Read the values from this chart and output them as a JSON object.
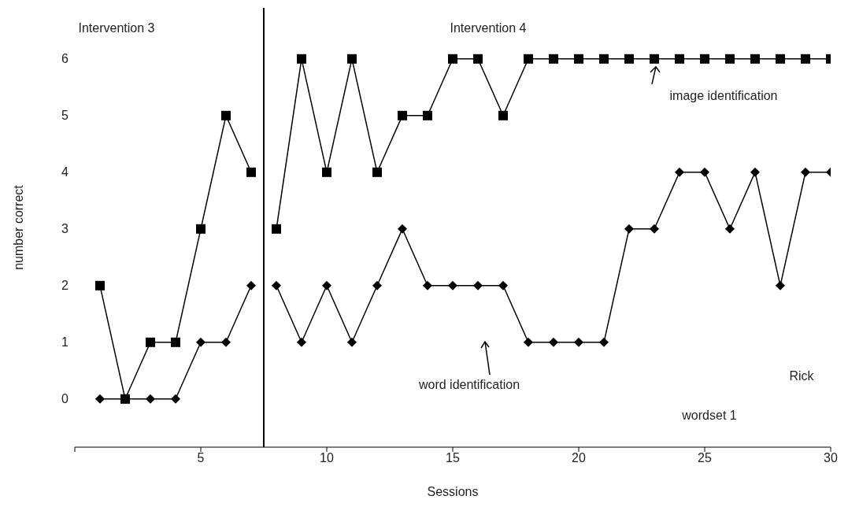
{
  "chart_data": {
    "type": "line",
    "xlabel": "Sessions",
    "ylabel": "number correct",
    "xlim": [
      0,
      30
    ],
    "xticks": [
      {
        "value": 0,
        "label": null
      },
      5,
      10,
      15,
      20,
      25,
      30
    ],
    "ylim": [
      -0.85,
      6.9
    ],
    "yticks": [
      0,
      1,
      2,
      3,
      4,
      5,
      6
    ],
    "series": [
      {
        "color": "#000000",
        "marker": "square",
        "x": [
          1,
          2,
          3,
          4,
          5,
          6,
          7
        ],
        "values": [
          2,
          0,
          1,
          1,
          3,
          5,
          4
        ]
      },
      {
        "color": "#000000",
        "marker": "square",
        "x": [
          8,
          9,
          10,
          11,
          12,
          13,
          14,
          15,
          16,
          17,
          18,
          19,
          20,
          21,
          22,
          23,
          24,
          25,
          26,
          27,
          28,
          29,
          30
        ],
        "values": [
          3,
          6,
          4,
          6,
          4,
          5,
          5,
          6,
          6,
          5,
          6,
          6,
          6,
          6,
          6,
          6,
          6,
          6,
          6,
          6,
          6,
          6,
          6
        ]
      },
      {
        "color": "#000000",
        "marker": "diamond",
        "x": [
          1,
          2,
          3,
          4,
          5,
          6,
          7
        ],
        "values": [
          0,
          0,
          0,
          0,
          1,
          1,
          2
        ]
      },
      {
        "color": "#000000",
        "marker": "diamond",
        "x": [
          8,
          9,
          10,
          11,
          12,
          13,
          14,
          15,
          16,
          17,
          18,
          19,
          20,
          21,
          22,
          23,
          24,
          25,
          26,
          27,
          28,
          29,
          30
        ],
        "values": [
          2,
          1,
          2,
          1,
          2,
          3,
          2,
          2,
          2,
          2,
          1,
          1,
          1,
          1,
          3,
          3,
          4,
          4,
          3,
          4,
          2,
          4,
          4
        ]
      }
    ],
    "ref_lines": [
      {
        "axis": "x",
        "value": 7.5,
        "color": "#000000"
      }
    ],
    "annotations": [
      "Intervention 3",
      "Intervention 4",
      {
        "text": "image identification",
        "x": 23,
        "y": 6
      },
      "word identification",
      "Rick",
      "wordset 1"
    ]
  }
}
